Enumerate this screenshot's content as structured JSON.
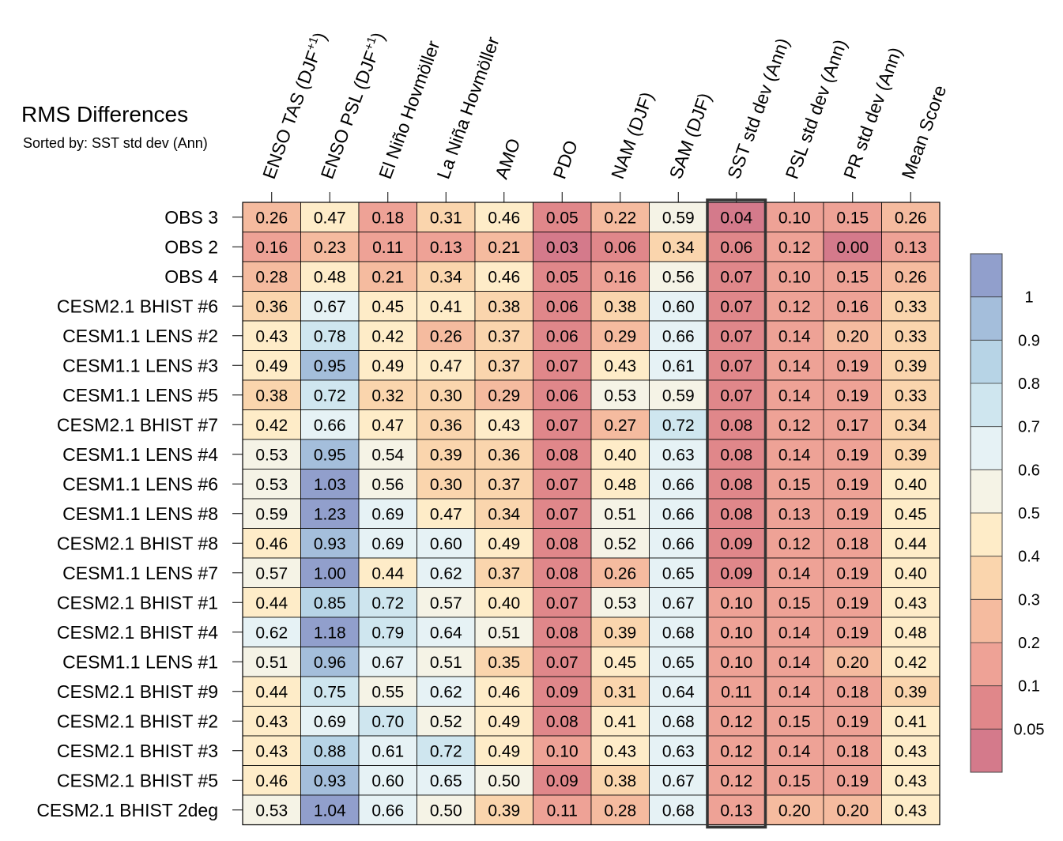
{
  "chart_data": {
    "type": "heatmap",
    "title": "RMS Differences",
    "subtitle": "Sorted by: SST std dev (Ann)",
    "highlight_column": "SST std dev (Ann)",
    "columns": [
      {
        "key": "enso_tas",
        "label": "ENSO TAS (DJF",
        "sup": "+1",
        "suffix": ")"
      },
      {
        "key": "enso_psl",
        "label": "ENSO PSL (DJF",
        "sup": "+1",
        "suffix": ")"
      },
      {
        "key": "el_nino",
        "label": "El Niño Hovmöller",
        "sup": "",
        "suffix": ""
      },
      {
        "key": "la_nina",
        "label": "La Niña Hovmöller",
        "sup": "",
        "suffix": ""
      },
      {
        "key": "amo",
        "label": "AMO",
        "sup": "",
        "suffix": ""
      },
      {
        "key": "pdo",
        "label": "PDO",
        "sup": "",
        "suffix": ""
      },
      {
        "key": "nam",
        "label": "NAM (DJF)",
        "sup": "",
        "suffix": ""
      },
      {
        "key": "sam",
        "label": "SAM (DJF)",
        "sup": "",
        "suffix": ""
      },
      {
        "key": "sst_std",
        "label": "SST std dev (Ann)",
        "sup": "",
        "suffix": ""
      },
      {
        "key": "psl_std",
        "label": "PSL std dev (Ann)",
        "sup": "",
        "suffix": ""
      },
      {
        "key": "pr_std",
        "label": "PR std dev (Ann)",
        "sup": "",
        "suffix": ""
      },
      {
        "key": "mean",
        "label": "Mean Score",
        "sup": "",
        "suffix": ""
      }
    ],
    "rows": [
      {
        "label": "OBS 3",
        "values": [
          "0.26",
          "0.47",
          "0.18",
          "0.31",
          "0.46",
          "0.05",
          "0.22",
          "0.59",
          "0.04",
          "0.10",
          "0.15",
          "0.26"
        ]
      },
      {
        "label": "OBS 2",
        "values": [
          "0.16",
          "0.23",
          "0.11",
          "0.13",
          "0.21",
          "0.03",
          "0.06",
          "0.34",
          "0.06",
          "0.12",
          "0.00",
          "0.13"
        ]
      },
      {
        "label": "OBS 4",
        "values": [
          "0.28",
          "0.48",
          "0.21",
          "0.34",
          "0.46",
          "0.05",
          "0.16",
          "0.56",
          "0.07",
          "0.10",
          "0.15",
          "0.26"
        ]
      },
      {
        "label": "CESM2.1 BHIST #6",
        "values": [
          "0.36",
          "0.67",
          "0.45",
          "0.41",
          "0.38",
          "0.06",
          "0.38",
          "0.60",
          "0.07",
          "0.12",
          "0.16",
          "0.33"
        ]
      },
      {
        "label": "CESM1.1 LENS #2",
        "values": [
          "0.43",
          "0.78",
          "0.42",
          "0.26",
          "0.37",
          "0.06",
          "0.29",
          "0.66",
          "0.07",
          "0.14",
          "0.20",
          "0.33"
        ]
      },
      {
        "label": "CESM1.1 LENS #3",
        "values": [
          "0.49",
          "0.95",
          "0.49",
          "0.47",
          "0.37",
          "0.07",
          "0.43",
          "0.61",
          "0.07",
          "0.14",
          "0.19",
          "0.39"
        ]
      },
      {
        "label": "CESM1.1 LENS #5",
        "values": [
          "0.38",
          "0.72",
          "0.32",
          "0.30",
          "0.29",
          "0.06",
          "0.53",
          "0.59",
          "0.07",
          "0.14",
          "0.19",
          "0.33"
        ]
      },
      {
        "label": "CESM2.1 BHIST #7",
        "values": [
          "0.42",
          "0.66",
          "0.47",
          "0.36",
          "0.43",
          "0.07",
          "0.27",
          "0.72",
          "0.08",
          "0.12",
          "0.17",
          "0.34"
        ]
      },
      {
        "label": "CESM1.1 LENS #4",
        "values": [
          "0.53",
          "0.95",
          "0.54",
          "0.39",
          "0.36",
          "0.08",
          "0.40",
          "0.63",
          "0.08",
          "0.14",
          "0.19",
          "0.39"
        ]
      },
      {
        "label": "CESM1.1 LENS #6",
        "values": [
          "0.53",
          "1.03",
          "0.56",
          "0.30",
          "0.37",
          "0.07",
          "0.48",
          "0.66",
          "0.08",
          "0.15",
          "0.19",
          "0.40"
        ]
      },
      {
        "label": "CESM1.1 LENS #8",
        "values": [
          "0.59",
          "1.23",
          "0.69",
          "0.47",
          "0.34",
          "0.07",
          "0.51",
          "0.66",
          "0.08",
          "0.13",
          "0.19",
          "0.45"
        ]
      },
      {
        "label": "CESM2.1 BHIST #8",
        "values": [
          "0.46",
          "0.93",
          "0.69",
          "0.60",
          "0.49",
          "0.08",
          "0.52",
          "0.66",
          "0.09",
          "0.12",
          "0.18",
          "0.44"
        ]
      },
      {
        "label": "CESM1.1 LENS #7",
        "values": [
          "0.57",
          "1.00",
          "0.44",
          "0.62",
          "0.37",
          "0.08",
          "0.26",
          "0.65",
          "0.09",
          "0.14",
          "0.19",
          "0.40"
        ]
      },
      {
        "label": "CESM2.1 BHIST #1",
        "values": [
          "0.44",
          "0.85",
          "0.72",
          "0.57",
          "0.40",
          "0.07",
          "0.53",
          "0.67",
          "0.10",
          "0.15",
          "0.19",
          "0.43"
        ]
      },
      {
        "label": "CESM2.1 BHIST #4",
        "values": [
          "0.62",
          "1.18",
          "0.79",
          "0.64",
          "0.51",
          "0.08",
          "0.39",
          "0.68",
          "0.10",
          "0.14",
          "0.19",
          "0.48"
        ]
      },
      {
        "label": "CESM1.1 LENS #1",
        "values": [
          "0.51",
          "0.96",
          "0.67",
          "0.51",
          "0.35",
          "0.07",
          "0.45",
          "0.65",
          "0.10",
          "0.14",
          "0.20",
          "0.42"
        ]
      },
      {
        "label": "CESM2.1 BHIST #9",
        "values": [
          "0.44",
          "0.75",
          "0.55",
          "0.62",
          "0.46",
          "0.09",
          "0.31",
          "0.64",
          "0.11",
          "0.14",
          "0.18",
          "0.39"
        ]
      },
      {
        "label": "CESM2.1 BHIST #2",
        "values": [
          "0.43",
          "0.69",
          "0.70",
          "0.52",
          "0.49",
          "0.08",
          "0.41",
          "0.68",
          "0.12",
          "0.15",
          "0.19",
          "0.41"
        ]
      },
      {
        "label": "CESM2.1 BHIST #3",
        "values": [
          "0.43",
          "0.88",
          "0.61",
          "0.72",
          "0.49",
          "0.10",
          "0.43",
          "0.63",
          "0.12",
          "0.14",
          "0.18",
          "0.43"
        ]
      },
      {
        "label": "CESM2.1 BHIST #5",
        "values": [
          "0.46",
          "0.93",
          "0.60",
          "0.65",
          "0.50",
          "0.09",
          "0.38",
          "0.67",
          "0.12",
          "0.15",
          "0.19",
          "0.43"
        ]
      },
      {
        "label": "CESM2.1 BHIST 2deg",
        "values": [
          "0.53",
          "1.04",
          "0.66",
          "0.50",
          "0.39",
          "0.11",
          "0.28",
          "0.68",
          "0.13",
          "0.20",
          "0.20",
          "0.43"
        ]
      }
    ],
    "colorbar": {
      "levels": [
        0.05,
        0.1,
        0.2,
        0.3,
        0.4,
        0.5,
        0.6,
        0.7,
        0.8,
        0.9,
        1
      ],
      "labels": [
        "0.05",
        "0.1",
        "0.2",
        "0.3",
        "0.4",
        "0.5",
        "0.6",
        "0.7",
        "0.8",
        "0.9",
        "1"
      ],
      "colors": [
        "#d47a8b",
        "#e0878a",
        "#eea296",
        "#f5bb9f",
        "#fad5ad",
        "#feecc8",
        "#f5f3e6",
        "#e6f2f5",
        "#cfe6ef",
        "#b7d4e6",
        "#a4bedb",
        "#919fcc"
      ]
    }
  }
}
